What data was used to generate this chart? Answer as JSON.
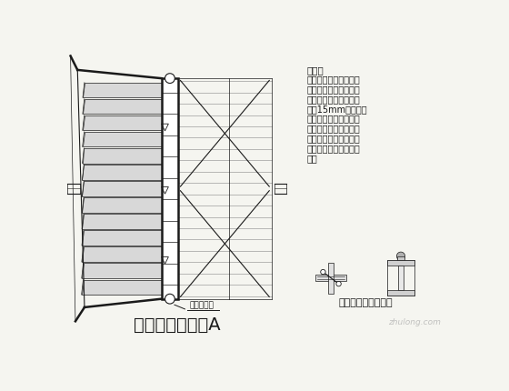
{
  "bg_color": "#f5f5f0",
  "title": "桥台平面大样－A",
  "title_fontsize": 14,
  "subtitle2": "桥面工字钢连接大样",
  "subtitle2_fontsize": 8,
  "label_warning": "警告标示牌",
  "notes_title": "备注：",
  "notes_lines": [
    "桥台下行车道下灰土处",
    "理，处理深度根据现场",
    "的土质情况而定。枕木",
    "上盖15mm钢板，外",
    "侧枕木两边需用灰土填",
    "实。禁止在便桥上进行",
    "吊装作业。车辆经过便",
    "桥时慢速行驶，禁止急",
    "刹。"
  ],
  "notes_fontsize": 7,
  "line_color": "#1a1a1a",
  "watermark": "zhulong.com"
}
